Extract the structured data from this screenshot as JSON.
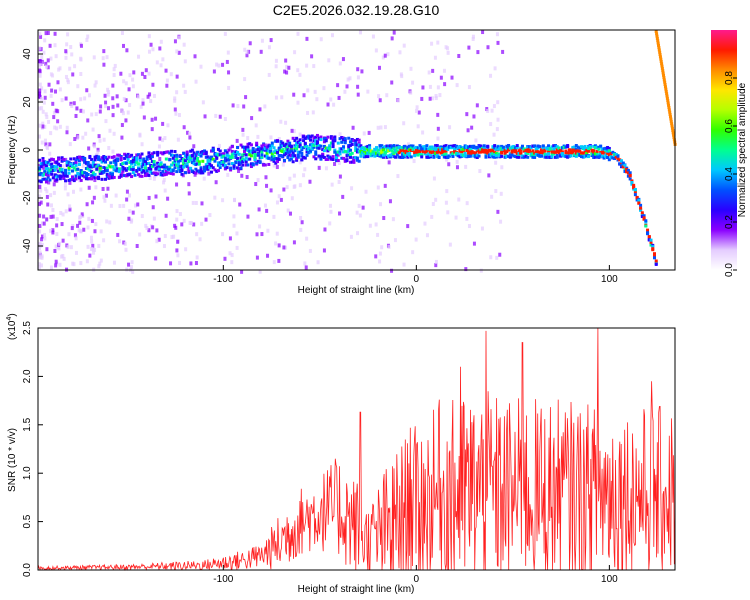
{
  "title": "C2E5.2026.032.19.28.G10",
  "chart_data": [
    {
      "type": "heatmap",
      "name": "spectrogram",
      "xlabel": "Height of straight line (km)",
      "ylabel": "Frequency (Hz)",
      "xlim": [
        -196,
        134
      ],
      "ylim": [
        -50,
        50
      ],
      "xticks": [
        -100,
        0,
        100
      ],
      "yticks": [
        -40,
        -20,
        0,
        20,
        40
      ],
      "ridge": {
        "description": "main frequency track, Hz versus height",
        "x": [
          -196,
          -170,
          -150,
          -130,
          -110,
          -90,
          -70,
          -55,
          -40,
          -30,
          -20,
          0,
          20,
          60,
          95,
          103,
          110,
          118,
          125
        ],
        "y": [
          -8,
          -7,
          -6,
          -5,
          -4,
          -2,
          0,
          2,
          1,
          0,
          0,
          0,
          0,
          0,
          0,
          -2,
          -10,
          -30,
          -50
        ]
      },
      "aliased_ridge": {
        "x": [
          124,
          134
        ],
        "y": [
          50,
          2
        ]
      },
      "colorbar": {
        "label": "Normalized spectral amplitude",
        "range": [
          0,
          1
        ],
        "ticks": [
          "0.0",
          "0.2",
          "0.4",
          "0.6",
          "0.8"
        ],
        "colors": [
          "#ffffff",
          "#e4ccff",
          "#8a00ff",
          "#2a00ff",
          "#0050ff",
          "#00c8ff",
          "#00ff90",
          "#30ff00",
          "#b4ff00",
          "#ffe600",
          "#ff8c00",
          "#ff1a00",
          "#ff1a8c"
        ]
      }
    },
    {
      "type": "line",
      "name": "snr",
      "xlabel": "Height of straight line (km)",
      "ylabel": "SNR (10 * v/v)",
      "yscale_label": "(x10",
      "yscale_exp": "4",
      "yscale_close": ")",
      "xlim": [
        -196,
        134
      ],
      "ylim": [
        0,
        2.5
      ],
      "xticks": [
        -100,
        0,
        100
      ],
      "yticks": [
        "0.0",
        "0.5",
        "1.0",
        "1.5",
        "2.0",
        "2.5"
      ],
      "color": "#ff2020",
      "envelope": {
        "x": [
          -196,
          -150,
          -110,
          -90,
          -80,
          -70,
          -60,
          -50,
          -40,
          -30,
          -25,
          -15,
          -5,
          5,
          15,
          30,
          50,
          70,
          100,
          134
        ],
        "base": [
          0.02,
          0.03,
          0.05,
          0.1,
          0.15,
          0.3,
          0.5,
          0.6,
          0.65,
          0.4,
          0.3,
          0.4,
          0.6,
          0.7,
          0.75,
          0.8,
          0.8,
          0.8,
          0.8,
          0.8
        ],
        "amp": [
          0.02,
          0.03,
          0.06,
          0.12,
          0.15,
          0.35,
          0.4,
          0.45,
          0.6,
          0.6,
          0.4,
          0.8,
          0.9,
          1.0,
          1.1,
          1.2,
          1.1,
          1.1,
          1.0,
          1.0
        ]
      },
      "peaks": [
        {
          "x": -29,
          "y": 1.63
        },
        {
          "x": -3,
          "y": 1.47
        },
        {
          "x": 12,
          "y": 1.76
        },
        {
          "x": 23,
          "y": 2.1
        },
        {
          "x": 36,
          "y": 2.47
        },
        {
          "x": 55,
          "y": 2.35
        },
        {
          "x": 94,
          "y": 2.5
        },
        {
          "x": 122,
          "y": 1.95
        }
      ]
    }
  ]
}
